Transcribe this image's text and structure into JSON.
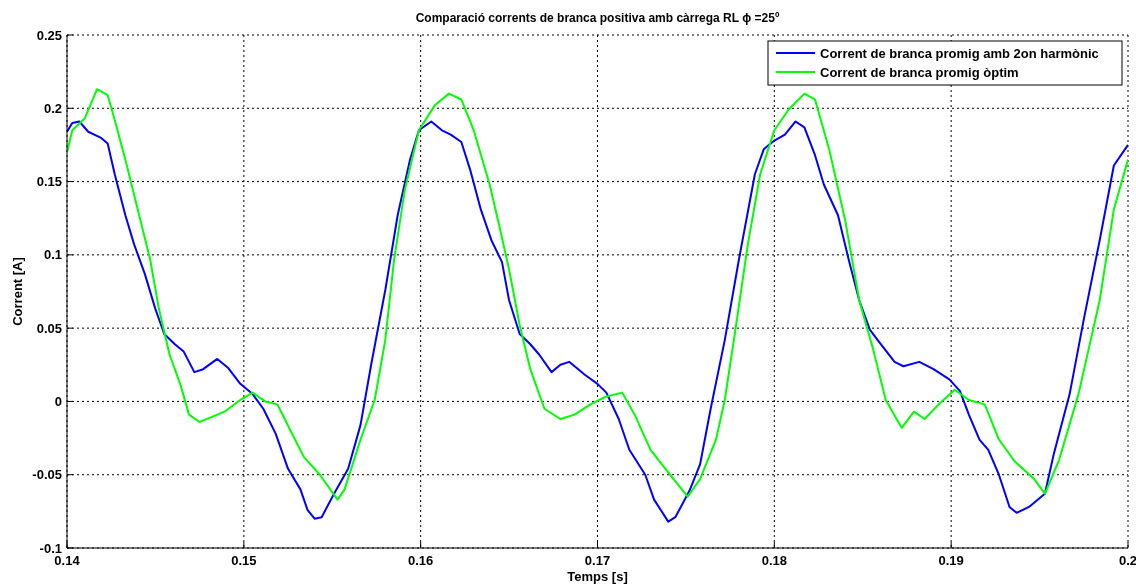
{
  "chart_data": {
    "type": "line",
    "title": "Comparació corrents de branca positiva amb càrrega RL ϕ =25º",
    "xlabel": "Temps [s]",
    "ylabel": "Corrent [A]",
    "xlim": [
      0.14,
      0.2
    ],
    "ylim": [
      -0.1,
      0.25
    ],
    "xticks": [
      0.14,
      0.15,
      0.16,
      0.17,
      0.18,
      0.19,
      0.2
    ],
    "yticks": [
      -0.1,
      -0.05,
      0,
      0.05,
      0.1,
      0.15,
      0.2,
      0.25
    ],
    "grid": true,
    "legend": "top right",
    "line_style": "solid",
    "marker": "none",
    "series": [
      {
        "name": "Corrent de branca promig amb 2on harmònic",
        "color": "#0000ff",
        "x": [
          0.14,
          0.1403,
          0.1407,
          0.1412,
          0.1419,
          0.1423,
          0.1427,
          0.1433,
          0.1438,
          0.1444,
          0.145,
          0.1455,
          0.1461,
          0.1466,
          0.1472,
          0.1477,
          0.1485,
          0.1491,
          0.1498,
          0.1505,
          0.1511,
          0.1518,
          0.1525,
          0.1532,
          0.1536,
          0.154,
          0.1544,
          0.1551,
          0.1559,
          0.1566,
          0.1572,
          0.158,
          0.1587,
          0.1594,
          0.1599,
          0.1606,
          0.1612,
          0.1617,
          0.1623,
          0.1628,
          0.1634,
          0.164,
          0.1646,
          0.165,
          0.1656,
          0.1662,
          0.1667,
          0.1674,
          0.1679,
          0.1684,
          0.1693,
          0.17,
          0.1705,
          0.1712,
          0.1718,
          0.1727,
          0.1732,
          0.174,
          0.1744,
          0.1752,
          0.1758,
          0.1764,
          0.1772,
          0.178,
          0.1789,
          0.1794,
          0.18,
          0.1806,
          0.1812,
          0.1817,
          0.1823,
          0.1828,
          0.1836,
          0.1842,
          0.1848,
          0.1854,
          0.1859,
          0.1868,
          0.1873,
          0.1882,
          0.189,
          0.1899,
          0.1905,
          0.191,
          0.1916,
          0.1921,
          0.1927,
          0.1933,
          0.1937,
          0.1944,
          0.1953,
          0.1958,
          0.1967,
          0.1975,
          0.1984,
          0.1992,
          0.2
        ],
        "values": [
          0.184,
          0.19,
          0.191,
          0.184,
          0.18,
          0.176,
          0.155,
          0.127,
          0.107,
          0.087,
          0.063,
          0.046,
          0.039,
          0.034,
          0.02,
          0.022,
          0.029,
          0.023,
          0.012,
          0.005,
          -0.005,
          -0.022,
          -0.046,
          -0.06,
          -0.074,
          -0.08,
          -0.079,
          -0.063,
          -0.046,
          -0.016,
          0.025,
          0.076,
          0.127,
          0.165,
          0.185,
          0.191,
          0.185,
          0.182,
          0.177,
          0.158,
          0.131,
          0.11,
          0.095,
          0.069,
          0.046,
          0.039,
          0.032,
          0.02,
          0.025,
          0.027,
          0.018,
          0.012,
          0.006,
          -0.012,
          -0.033,
          -0.05,
          -0.067,
          -0.082,
          -0.079,
          -0.061,
          -0.043,
          -0.005,
          0.042,
          0.097,
          0.155,
          0.172,
          0.178,
          0.182,
          0.191,
          0.187,
          0.168,
          0.148,
          0.127,
          0.097,
          0.069,
          0.049,
          0.041,
          0.027,
          0.024,
          0.027,
          0.022,
          0.015,
          0.007,
          -0.009,
          -0.026,
          -0.033,
          -0.05,
          -0.072,
          -0.076,
          -0.072,
          -0.063,
          -0.036,
          0.005,
          0.056,
          0.11,
          0.161,
          0.175
        ]
      },
      {
        "name": "Corrent de branca promig òptim",
        "color": "#00ff00",
        "x": [
          0.14,
          0.1403,
          0.141,
          0.1417,
          0.1423,
          0.1427,
          0.1433,
          0.144,
          0.1447,
          0.1452,
          0.1458,
          0.1464,
          0.1469,
          0.1475,
          0.1481,
          0.1489,
          0.1498,
          0.1505,
          0.1512,
          0.1519,
          0.1526,
          0.1534,
          0.1543,
          0.1553,
          0.1557,
          0.1566,
          0.1574,
          0.158,
          0.1585,
          0.1591,
          0.1599,
          0.1608,
          0.1616,
          0.1623,
          0.163,
          0.1639,
          0.1645,
          0.165,
          0.1656,
          0.1662,
          0.167,
          0.1679,
          0.1687,
          0.1696,
          0.1704,
          0.1714,
          0.1721,
          0.173,
          0.1741,
          0.1751,
          0.1758,
          0.1767,
          0.1772,
          0.1778,
          0.1785,
          0.1792,
          0.18,
          0.1808,
          0.1817,
          0.1823,
          0.1831,
          0.184,
          0.1848,
          0.1856,
          0.1863,
          0.1872,
          0.1879,
          0.1885,
          0.1893,
          0.1902,
          0.191,
          0.1919,
          0.1927,
          0.1936,
          0.1947,
          0.1953,
          0.1961,
          0.1972,
          0.1984,
          0.1992,
          0.2
        ],
        "values": [
          0.17,
          0.185,
          0.193,
          0.213,
          0.209,
          0.192,
          0.165,
          0.131,
          0.097,
          0.063,
          0.032,
          0.012,
          -0.009,
          -0.014,
          -0.011,
          -0.007,
          0.001,
          0.006,
          0,
          -0.002,
          -0.019,
          -0.038,
          -0.05,
          -0.067,
          -0.06,
          -0.026,
          0.001,
          0.042,
          0.097,
          0.144,
          0.185,
          0.202,
          0.21,
          0.206,
          0.185,
          0.148,
          0.117,
          0.09,
          0.052,
          0.022,
          -0.005,
          -0.012,
          -0.009,
          -0.002,
          0.003,
          0.006,
          -0.009,
          -0.033,
          -0.05,
          -0.065,
          -0.053,
          -0.026,
          0.001,
          0.049,
          0.107,
          0.155,
          0.185,
          0.199,
          0.21,
          0.206,
          0.172,
          0.124,
          0.069,
          0.035,
          0.001,
          -0.018,
          -0.007,
          -0.012,
          -0.002,
          0.008,
          0.001,
          -0.002,
          -0.026,
          -0.041,
          -0.053,
          -0.063,
          -0.04,
          0.005,
          0.069,
          0.131,
          0.165
        ]
      }
    ]
  }
}
